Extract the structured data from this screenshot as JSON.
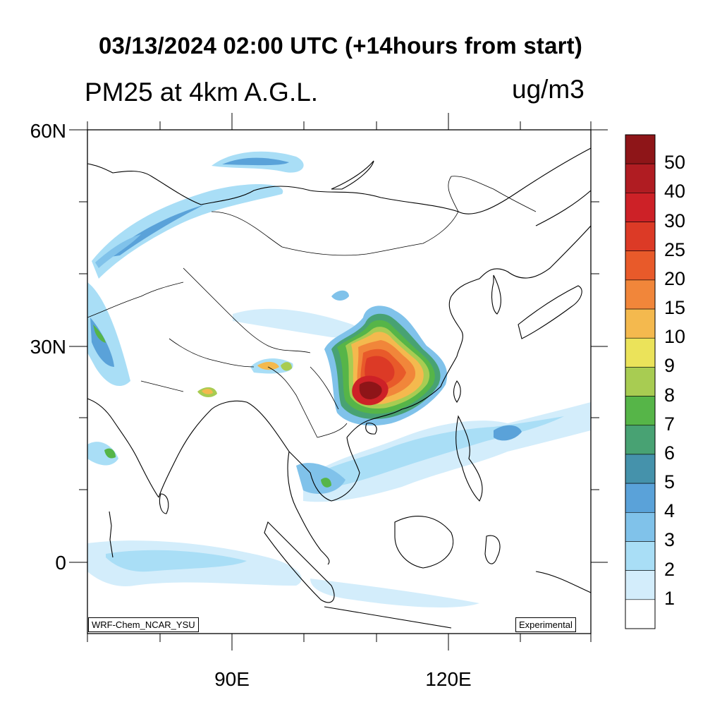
{
  "title": "03/13/2024 02:00 UTC (+14hours from start)",
  "subtitle": "PM25 at 4km A.G.L.",
  "units": "ug/m3",
  "lat_labels": [
    "60N",
    "30N",
    "0"
  ],
  "lon_labels": [
    "90E",
    "120E"
  ],
  "model_credit": "WRF-Chem_NCAR_YSU",
  "status_note": "Experimental",
  "colorbar": {
    "labels": [
      "50",
      "40",
      "30",
      "25",
      "20",
      "15",
      "10",
      "9",
      "8",
      "7",
      "6",
      "5",
      "4",
      "3",
      "2",
      "1"
    ],
    "colors": [
      "#8e1518",
      "#b01c22",
      "#cd2127",
      "#dc3a26",
      "#e85a2a",
      "#f1863a",
      "#f4b94e",
      "#ebe35a",
      "#a8cc52",
      "#56b548",
      "#48a273",
      "#4592ab",
      "#5aa2d9",
      "#80c2ea",
      "#a9def6",
      "#d3edfb",
      "#ffffff"
    ]
  }
}
